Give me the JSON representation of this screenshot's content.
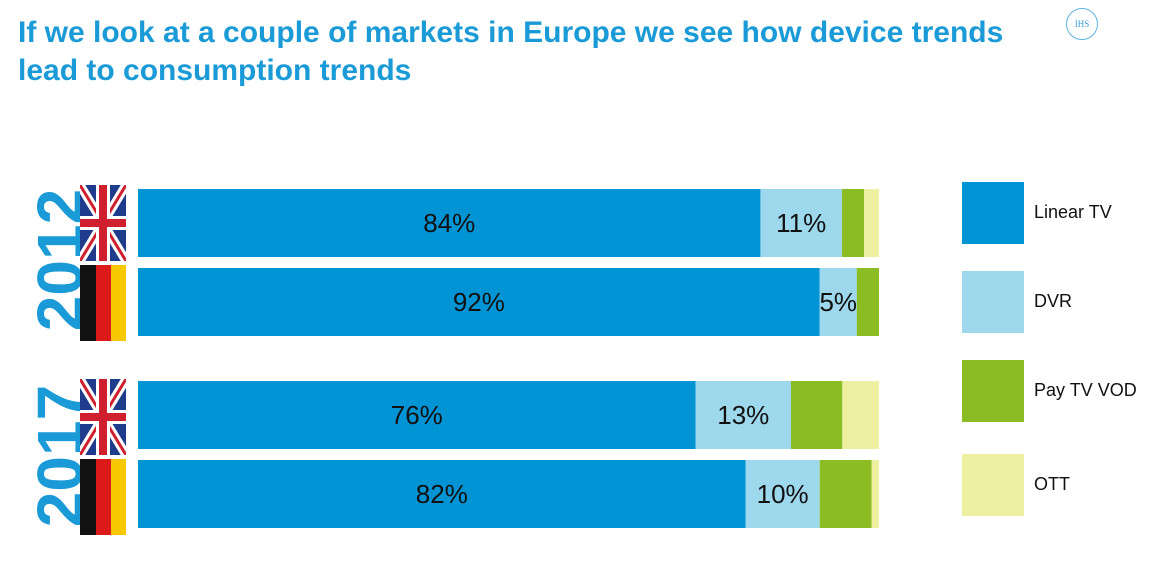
{
  "title": "If we look at a couple of markets in Europe we see how device trends lead to consumption trends",
  "logo_text": "IHS",
  "colors": {
    "linear_tv": "#0094d4",
    "dvr": "#9dd8ec",
    "pay_tv_vod": "#8cbc24",
    "ott": "#ecf0a0",
    "title": "#1a9ad6"
  },
  "year_labels": [
    "2012",
    "2017"
  ],
  "legend": [
    "Linear TV",
    "DVR",
    "Pay TV VOD",
    "OTT"
  ],
  "chart_data": {
    "type": "bar",
    "orientation": "horizontal",
    "stacked": true,
    "percent_stacked": true,
    "groups": [
      {
        "year": "2012",
        "rows": [
          {
            "country": "UK",
            "flag": "uk-flag",
            "values": {
              "Linear TV": 84,
              "DVR": 11,
              "Pay TV VOD": 3,
              "OTT": 2
            },
            "labels": [
              "84%",
              "11%",
              "",
              ""
            ]
          },
          {
            "country": "Germany",
            "flag": "germany-flag",
            "values": {
              "Linear TV": 92,
              "DVR": 5,
              "Pay TV VOD": 3,
              "OTT": 0
            },
            "labels": [
              "92%",
              "5%",
              "",
              ""
            ]
          }
        ]
      },
      {
        "year": "2017",
        "rows": [
          {
            "country": "UK",
            "flag": "uk-flag",
            "values": {
              "Linear TV": 76,
              "DVR": 13,
              "Pay TV VOD": 7,
              "OTT": 5
            },
            "labels": [
              "76%",
              "13%",
              "",
              ""
            ]
          },
          {
            "country": "Germany",
            "flag": "germany-flag",
            "values": {
              "Linear TV": 82,
              "DVR": 10,
              "Pay TV VOD": 7,
              "OTT": 1
            },
            "labels": [
              "82%",
              "10%",
              "",
              ""
            ]
          }
        ]
      }
    ],
    "series": [
      "Linear TV",
      "DVR",
      "Pay TV VOD",
      "OTT"
    ],
    "xlim": [
      0,
      100
    ],
    "grid": false,
    "legend_position": "right"
  }
}
